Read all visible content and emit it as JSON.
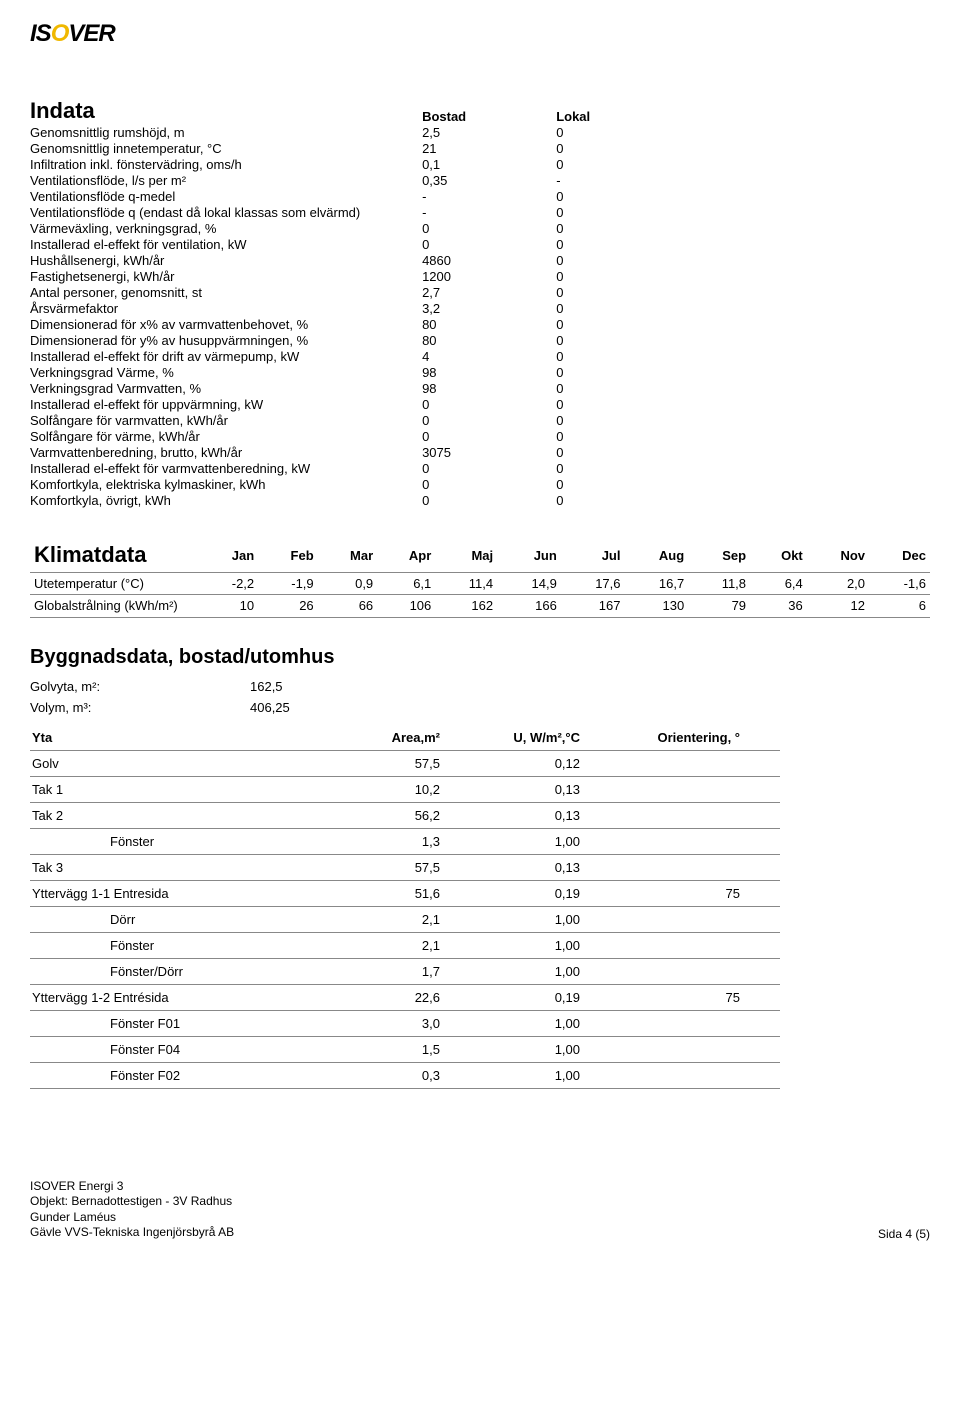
{
  "logo": {
    "pre": "IS",
    "o": "O",
    "post": "VER"
  },
  "indata": {
    "title": "Indata",
    "col_headers": [
      "Bostad",
      "Lokal"
    ],
    "rows": [
      {
        "label": "Genomsnittlig rumshöjd, m",
        "v1": "2,5",
        "v2": "0"
      },
      {
        "label": "Genomsnittlig innetemperatur, °C",
        "v1": "21",
        "v2": "0"
      },
      {
        "label": "Infiltration inkl. fönstervädring, oms/h",
        "v1": "0,1",
        "v2": "0"
      },
      {
        "label": "Ventilationsflöde, l/s per m²",
        "v1": "0,35",
        "v2": "-"
      },
      {
        "label": "Ventilationsflöde q-medel",
        "v1": "-",
        "v2": "0"
      },
      {
        "label": "Ventilationsflöde q (endast då lokal klassas som elvärmd)",
        "v1": "-",
        "v2": "0"
      },
      {
        "label": "Värmeväxling, verkningsgrad, %",
        "v1": "0",
        "v2": "0"
      },
      {
        "label": "Installerad el-effekt för ventilation, kW",
        "v1": "0",
        "v2": "0"
      },
      {
        "label": "Hushållsenergi, kWh/år",
        "v1": "4860",
        "v2": "0"
      },
      {
        "label": "Fastighetsenergi, kWh/år",
        "v1": "1200",
        "v2": "0"
      },
      {
        "label": "Antal personer, genomsnitt, st",
        "v1": "2,7",
        "v2": "0"
      },
      {
        "label": "Årsvärmefaktor",
        "v1": "3,2",
        "v2": "0"
      },
      {
        "label": "Dimensionerad för x% av varmvattenbehovet, %",
        "v1": "80",
        "v2": "0"
      },
      {
        "label": "Dimensionerad för y% av husuppvärmningen, %",
        "v1": "80",
        "v2": "0"
      },
      {
        "label": "Installerad el-effekt för drift av värmepump, kW",
        "v1": "4",
        "v2": "0"
      },
      {
        "label": "Verkningsgrad Värme, %",
        "v1": "98",
        "v2": "0"
      },
      {
        "label": "Verkningsgrad Varmvatten, %",
        "v1": "98",
        "v2": "0"
      },
      {
        "label": "Installerad el-effekt för uppvärmning, kW",
        "v1": "0",
        "v2": "0"
      },
      {
        "label": "Solfångare för varmvatten, kWh/år",
        "v1": "0",
        "v2": "0"
      },
      {
        "label": "Solfångare för värme, kWh/år",
        "v1": "0",
        "v2": "0"
      },
      {
        "label": "Varmvattenberedning, brutto, kWh/år",
        "v1": "3075",
        "v2": "0"
      },
      {
        "label": "Installerad el-effekt för varmvattenberedning, kW",
        "v1": "0",
        "v2": "0"
      },
      {
        "label": "Komfortkyla, elektriska kylmaskiner, kWh",
        "v1": "0",
        "v2": "0"
      },
      {
        "label": "Komfortkyla, övrigt, kWh",
        "v1": "0",
        "v2": "0"
      }
    ]
  },
  "klimat": {
    "title": "Klimatdata",
    "months": [
      "Jan",
      "Feb",
      "Mar",
      "Apr",
      "Maj",
      "Jun",
      "Jul",
      "Aug",
      "Sep",
      "Okt",
      "Nov",
      "Dec"
    ],
    "rows": [
      {
        "label": "Utetemperatur (°C)",
        "vals": [
          "-2,2",
          "-1,9",
          "0,9",
          "6,1",
          "11,4",
          "14,9",
          "17,6",
          "16,7",
          "11,8",
          "6,4",
          "2,0",
          "-1,6"
        ]
      },
      {
        "label": "Globalstrålning (kWh/m²)",
        "vals": [
          "10",
          "26",
          "66",
          "106",
          "162",
          "166",
          "167",
          "130",
          "79",
          "36",
          "12",
          "6"
        ]
      }
    ]
  },
  "bygg": {
    "title": "Byggnadsdata, bostad/utomhus",
    "golvyta_label": "Golvyta, m²:",
    "golvyta_val": "162,5",
    "volym_label": "Volym, m³:",
    "volym_val": "406,25",
    "headers": [
      "Yta",
      "Area,m²",
      "U, W/m²,°C",
      "Orientering, °"
    ],
    "rows": [
      {
        "label": "Golv",
        "area": "57,5",
        "u": "0,12",
        "orient": "",
        "indent": 0
      },
      {
        "label": "Tak 1",
        "area": "10,2",
        "u": "0,13",
        "orient": "",
        "indent": 0
      },
      {
        "label": "Tak 2",
        "area": "56,2",
        "u": "0,13",
        "orient": "",
        "indent": 0
      },
      {
        "label": "Fönster",
        "area": "1,3",
        "u": "1,00",
        "orient": "",
        "indent": 1
      },
      {
        "label": "Tak 3",
        "area": "57,5",
        "u": "0,13",
        "orient": "",
        "indent": 0
      },
      {
        "label": "Yttervägg 1-1 Entresida",
        "area": "51,6",
        "u": "0,19",
        "orient": "75",
        "indent": 0
      },
      {
        "label": "Dörr",
        "area": "2,1",
        "u": "1,00",
        "orient": "",
        "indent": 1
      },
      {
        "label": "Fönster",
        "area": "2,1",
        "u": "1,00",
        "orient": "",
        "indent": 1
      },
      {
        "label": "Fönster/Dörr",
        "area": "1,7",
        "u": "1,00",
        "orient": "",
        "indent": 1
      },
      {
        "label": "Yttervägg 1-2 Entrésida",
        "area": "22,6",
        "u": "0,19",
        "orient": "75",
        "indent": 0
      },
      {
        "label": "Fönster F01",
        "area": "3,0",
        "u": "1,00",
        "orient": "",
        "indent": 1
      },
      {
        "label": "Fönster F04",
        "area": "1,5",
        "u": "1,00",
        "orient": "",
        "indent": 1
      },
      {
        "label": "Fönster F02",
        "area": "0,3",
        "u": "1,00",
        "orient": "",
        "indent": 1
      }
    ]
  },
  "footer": {
    "line1": "ISOVER Energi 3",
    "line2": "Objekt: Bernadottestigen - 3V Radhus",
    "line3": "Gunder Laméus",
    "line4": "Gävle VVS-Tekniska Ingenjörsbyrå AB",
    "page": "Sida 4 (5)"
  }
}
